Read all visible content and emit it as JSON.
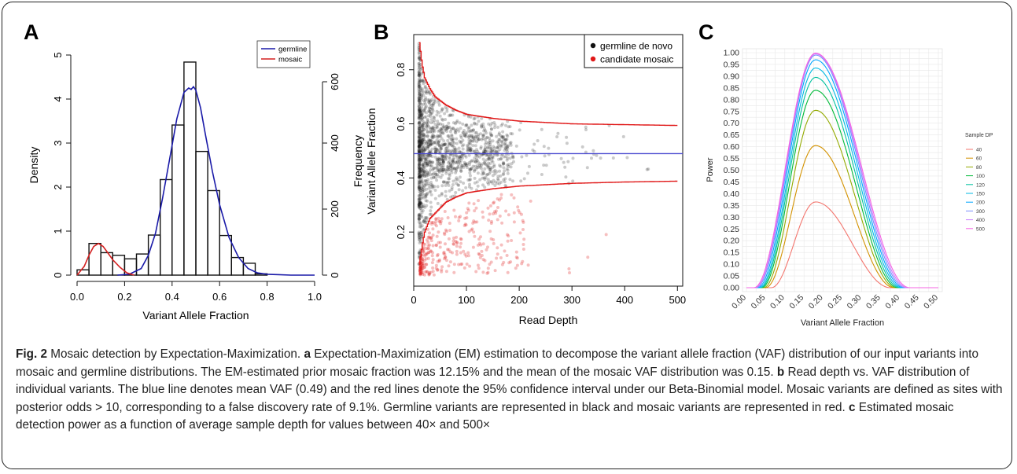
{
  "panel_a": {
    "letter": "A",
    "chart_data": {
      "type": "bar",
      "xlabel": "Variant Allele Fraction",
      "ylabel": "Density",
      "xlim": [
        0,
        1
      ],
      "ylim": [
        0,
        5
      ],
      "x_ticks": [
        "0.0",
        "0.2",
        "0.4",
        "0.6",
        "0.8",
        "1.0"
      ],
      "y_ticks": [
        "0",
        "1",
        "2",
        "3",
        "4",
        "5"
      ],
      "y2_ticks": [
        "0",
        "200",
        "400",
        "600"
      ],
      "bins": [
        {
          "x0": 0.0,
          "x1": 0.05,
          "value": 0.12
        },
        {
          "x0": 0.05,
          "x1": 0.1,
          "value": 0.72
        },
        {
          "x0": 0.1,
          "x1": 0.15,
          "value": 0.51
        },
        {
          "x0": 0.15,
          "x1": 0.2,
          "value": 0.45
        },
        {
          "x0": 0.2,
          "x1": 0.25,
          "value": 0.37
        },
        {
          "x0": 0.25,
          "x1": 0.3,
          "value": 0.48
        },
        {
          "x0": 0.3,
          "x1": 0.35,
          "value": 0.91
        },
        {
          "x0": 0.35,
          "x1": 0.4,
          "value": 2.17
        },
        {
          "x0": 0.4,
          "x1": 0.45,
          "value": 3.41
        },
        {
          "x0": 0.45,
          "x1": 0.5,
          "value": 4.84
        },
        {
          "x0": 0.5,
          "x1": 0.55,
          "value": 2.81
        },
        {
          "x0": 0.55,
          "x1": 0.6,
          "value": 1.92
        },
        {
          "x0": 0.6,
          "x1": 0.65,
          "value": 0.9
        },
        {
          "x0": 0.65,
          "x1": 0.7,
          "value": 0.4
        },
        {
          "x0": 0.7,
          "x1": 0.75,
          "value": 0.27
        },
        {
          "x0": 0.75,
          "x1": 0.8,
          "value": 0.03
        }
      ],
      "series": [
        {
          "name": "germline",
          "color": "#1a1aa8",
          "x": [
            0.17,
            0.22,
            0.27,
            0.3,
            0.33,
            0.36,
            0.39,
            0.42,
            0.45,
            0.47,
            0.48,
            0.49,
            0.5,
            0.52,
            0.54,
            0.57,
            0.6,
            0.64,
            0.68,
            0.72,
            0.76,
            0.8,
            0.85,
            0.9,
            1.0
          ],
          "y": [
            0.0,
            0.02,
            0.15,
            0.45,
            0.95,
            1.75,
            2.65,
            3.55,
            4.15,
            4.25,
            4.22,
            4.28,
            4.2,
            3.8,
            3.2,
            2.35,
            1.6,
            0.85,
            0.4,
            0.15,
            0.05,
            0.02,
            0.01,
            0.0,
            0.0
          ]
        },
        {
          "name": "mosaic",
          "color": "#d42020",
          "x": [
            0.0,
            0.03,
            0.05,
            0.07,
            0.09,
            0.11,
            0.13,
            0.15,
            0.18,
            0.21,
            0.24
          ],
          "y": [
            0.0,
            0.2,
            0.45,
            0.65,
            0.72,
            0.65,
            0.5,
            0.35,
            0.18,
            0.05,
            0.0
          ]
        }
      ]
    }
  },
  "panel_b": {
    "letter": "B",
    "chart_data": {
      "type": "scatter",
      "xlabel": "Read Depth",
      "ylabel_lines": [
        "Frequency",
        "Variant Allele Fraction"
      ],
      "xlim": [
        0,
        510
      ],
      "ylim": [
        0.0,
        0.93
      ],
      "x_ticks": [
        0,
        100,
        200,
        300,
        400,
        500
      ],
      "y_ticks": [
        0.2,
        0.4,
        0.6,
        0.8
      ],
      "mean_vaf": 0.49,
      "mean_line_color": "#4a4ad0",
      "legend": [
        {
          "label": "germline de novo",
          "color": "#111111"
        },
        {
          "label": "candidate mosaic",
          "color": "#e01818"
        }
      ],
      "upper_bound": {
        "x": [
          10,
          15,
          20,
          30,
          40,
          60,
          80,
          100,
          150,
          200,
          300,
          400,
          500
        ],
        "y": [
          0.9,
          0.82,
          0.77,
          0.73,
          0.7,
          0.67,
          0.65,
          0.635,
          0.62,
          0.61,
          0.6,
          0.597,
          0.594
        ]
      },
      "lower_bound": {
        "x": [
          10,
          15,
          20,
          30,
          40,
          60,
          80,
          100,
          150,
          200,
          300,
          400,
          500
        ],
        "y": [
          0.08,
          0.15,
          0.2,
          0.25,
          0.27,
          0.31,
          0.33,
          0.345,
          0.36,
          0.37,
          0.38,
          0.385,
          0.388
        ]
      },
      "germline_points_note": "dense cloud centered on 0.49 within bounds",
      "mosaic_points_note": "points below lower bound"
    }
  },
  "panel_c": {
    "letter": "C",
    "chart_data": {
      "type": "line",
      "xlabel": "Variant Allele Fraction",
      "ylabel": "Power",
      "xlim": [
        0,
        0.5
      ],
      "ylim": [
        0,
        1
      ],
      "x_ticks": [
        "0.00",
        "0.05",
        "0.10",
        "0.15",
        "0.20",
        "0.25",
        "0.30",
        "0.35",
        "0.40",
        "0.45",
        "0.50"
      ],
      "y_ticks": [
        "0.00",
        "0.05",
        "0.10",
        "0.15",
        "0.20",
        "0.25",
        "0.30",
        "0.35",
        "0.40",
        "0.45",
        "0.50",
        "0.55",
        "0.60",
        "0.65",
        "0.70",
        "0.75",
        "0.80",
        "0.85",
        "0.90",
        "0.95",
        "1.00"
      ],
      "legend_title": "Sample DP",
      "series": [
        {
          "name": "40",
          "color": "#f3766e",
          "peak": 0.365,
          "left": 0.065,
          "right": 0.375
        },
        {
          "name": "60",
          "color": "#d39200",
          "peak": 0.605,
          "left": 0.05,
          "right": 0.385
        },
        {
          "name": "80",
          "color": "#93aa00",
          "peak": 0.755,
          "left": 0.045,
          "right": 0.39
        },
        {
          "name": "100",
          "color": "#00ba38",
          "peak": 0.84,
          "left": 0.04,
          "right": 0.395
        },
        {
          "name": "120",
          "color": "#00c19f",
          "peak": 0.895,
          "left": 0.037,
          "right": 0.4
        },
        {
          "name": "150",
          "color": "#00b9e3",
          "peak": 0.935,
          "left": 0.034,
          "right": 0.405
        },
        {
          "name": "200",
          "color": "#00a5ff",
          "peak": 0.97,
          "left": 0.03,
          "right": 0.41
        },
        {
          "name": "300",
          "color": "#7b8cfc",
          "peak": 0.99,
          "left": 0.026,
          "right": 0.415
        },
        {
          "name": "400",
          "color": "#c77cff",
          "peak": 0.995,
          "left": 0.023,
          "right": 0.42
        },
        {
          "name": "500",
          "color": "#f564e3",
          "peak": 0.998,
          "left": 0.02,
          "right": 0.425
        }
      ]
    }
  },
  "caption": {
    "fig_label": "Fig. 2",
    "title": " Mosaic detection by Expectation-Maximization. ",
    "a_label": "a",
    "a_text": " Expectation-Maximization (EM) estimation to decompose the variant allele fraction (VAF) distribution of our input variants into mosaic and germline distributions. The EM-estimated prior mosaic fraction was 12.15% and the mean of the mosaic VAF distribution was 0.15. ",
    "b_label": "b",
    "b_text": " Read depth vs. VAF distribution of individual variants. The blue line denotes mean VAF (0.49) and the red lines denote the 95% confidence interval under our Beta-Binomial model. Mosaic variants are defined as sites with posterior odds > 10, corresponding to a false discovery rate of 9.1%. Germline variants are represented in black and mosaic variants are represented in red. ",
    "c_label": "c",
    "c_text": " Estimated mosaic detection power as a function of average sample depth for values between 40× and 500×"
  }
}
